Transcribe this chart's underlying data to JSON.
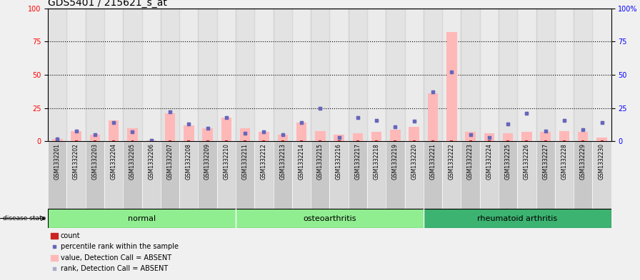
{
  "title": "GDS5401 / 215621_s_at",
  "samples": [
    "GSM1332201",
    "GSM1332202",
    "GSM1332203",
    "GSM1332204",
    "GSM1332205",
    "GSM1332206",
    "GSM1332207",
    "GSM1332208",
    "GSM1332209",
    "GSM1332210",
    "GSM1332211",
    "GSM1332212",
    "GSM1332213",
    "GSM1332214",
    "GSM1332215",
    "GSM1332216",
    "GSM1332217",
    "GSM1332218",
    "GSM1332219",
    "GSM1332220",
    "GSM1332221",
    "GSM1332222",
    "GSM1332223",
    "GSM1332224",
    "GSM1332225",
    "GSM1332226",
    "GSM1332227",
    "GSM1332228",
    "GSM1332229",
    "GSM1332230"
  ],
  "count": [
    1,
    1,
    1,
    1,
    1,
    1,
    1,
    1,
    1,
    1,
    1,
    1,
    1,
    1,
    1,
    1,
    1,
    1,
    1,
    1,
    1,
    1,
    1,
    1,
    1,
    1,
    1,
    1,
    1,
    1
  ],
  "percentile_rank": [
    2,
    8,
    5,
    14,
    7,
    1,
    22,
    13,
    10,
    18,
    6,
    7,
    5,
    14,
    25,
    3,
    18,
    16,
    11,
    15,
    37,
    52,
    5,
    3,
    13,
    21,
    8,
    16,
    9,
    14
  ],
  "value_absent": [
    2,
    8,
    5,
    16,
    10,
    1,
    21,
    12,
    10,
    18,
    10,
    7,
    5,
    14,
    8,
    5,
    6,
    7,
    9,
    11,
    36,
    82,
    7,
    6,
    6,
    7,
    7,
    8,
    7,
    3
  ],
  "rank_absent": [
    2,
    8,
    5,
    14,
    7,
    1,
    22,
    13,
    10,
    18,
    6,
    7,
    5,
    14,
    25,
    3,
    18,
    16,
    11,
    15,
    37,
    52,
    5,
    3,
    13,
    21,
    8,
    16,
    9,
    14
  ],
  "groups": [
    {
      "label": "normal",
      "start": 0,
      "end": 10,
      "color": "#90EE90"
    },
    {
      "label": "osteoarthritis",
      "start": 10,
      "end": 20,
      "color": "#90EE90"
    },
    {
      "label": "rheumatoid arthritis",
      "start": 20,
      "end": 30,
      "color": "#3CB371"
    }
  ],
  "col_colors": [
    "#c8c8c8",
    "#d8d8d8"
  ],
  "ylim": [
    0,
    100
  ],
  "yticks": [
    0,
    25,
    50,
    75,
    100
  ],
  "bg_color": "#f0f0f0",
  "plot_bg": "#ffffff",
  "bar_color_count": "#cc2222",
  "bar_color_absent": "#ffb8b8",
  "dot_color_rank": "#6666bb",
  "dot_color_rank_absent": "#aaaacc",
  "title_fontsize": 10,
  "tick_fontsize": 7,
  "sample_fontsize": 5.5,
  "legend_fontsize": 7,
  "group_fontsize": 8
}
